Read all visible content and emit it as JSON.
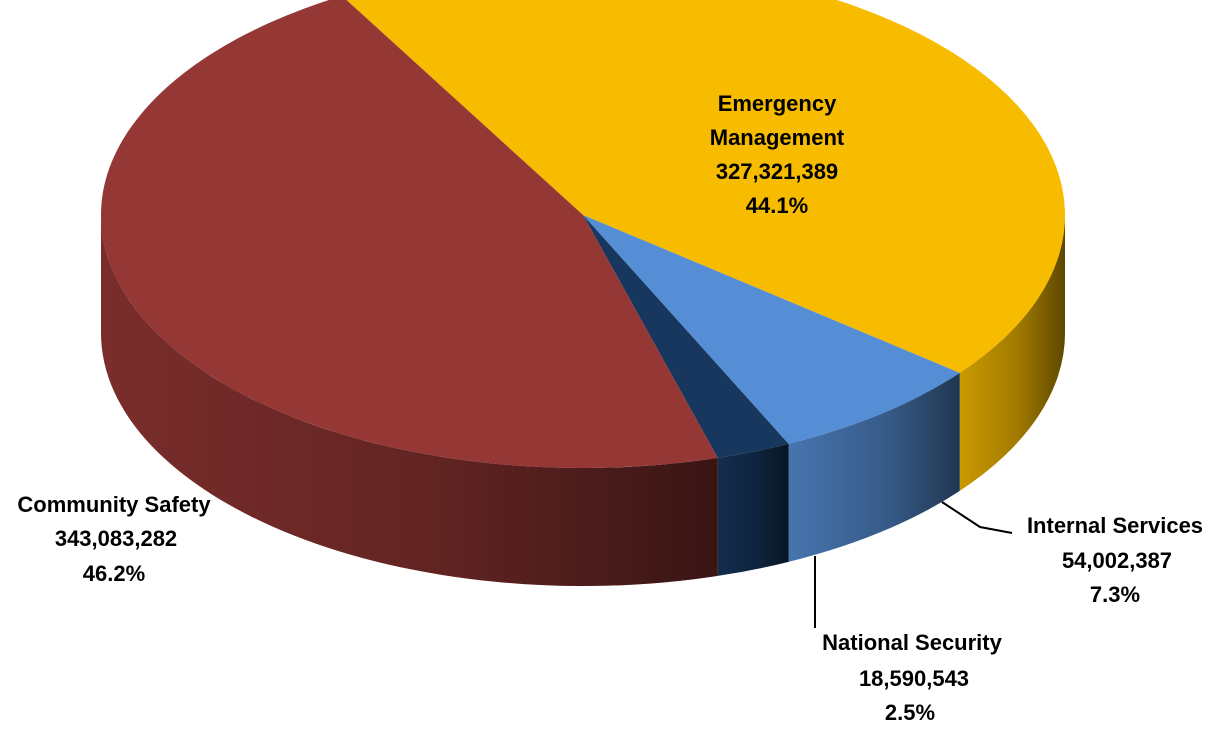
{
  "chart_data": {
    "type": "pie",
    "style": "3d",
    "title": "",
    "slices": [
      {
        "name": "Emergency Management",
        "value": 327321389,
        "value_label": "327,321,389",
        "percent": 44.1,
        "percent_label": "44.1%",
        "color": "#F7BC00"
      },
      {
        "name": "Internal Services",
        "value": 54002387,
        "value_label": "54,002,387",
        "percent": 7.3,
        "percent_label": "7.3%",
        "color": "#558ED5"
      },
      {
        "name": "National Security",
        "value": 18590543,
        "value_label": "18,590,543",
        "percent": 2.5,
        "percent_label": "2.5%",
        "color": "#17375E"
      },
      {
        "name": "Community Safety",
        "value": 343083282,
        "value_label": "343,083,282",
        "percent": 46.2,
        "percent_label": "46.2%",
        "color": "#953735"
      }
    ]
  }
}
